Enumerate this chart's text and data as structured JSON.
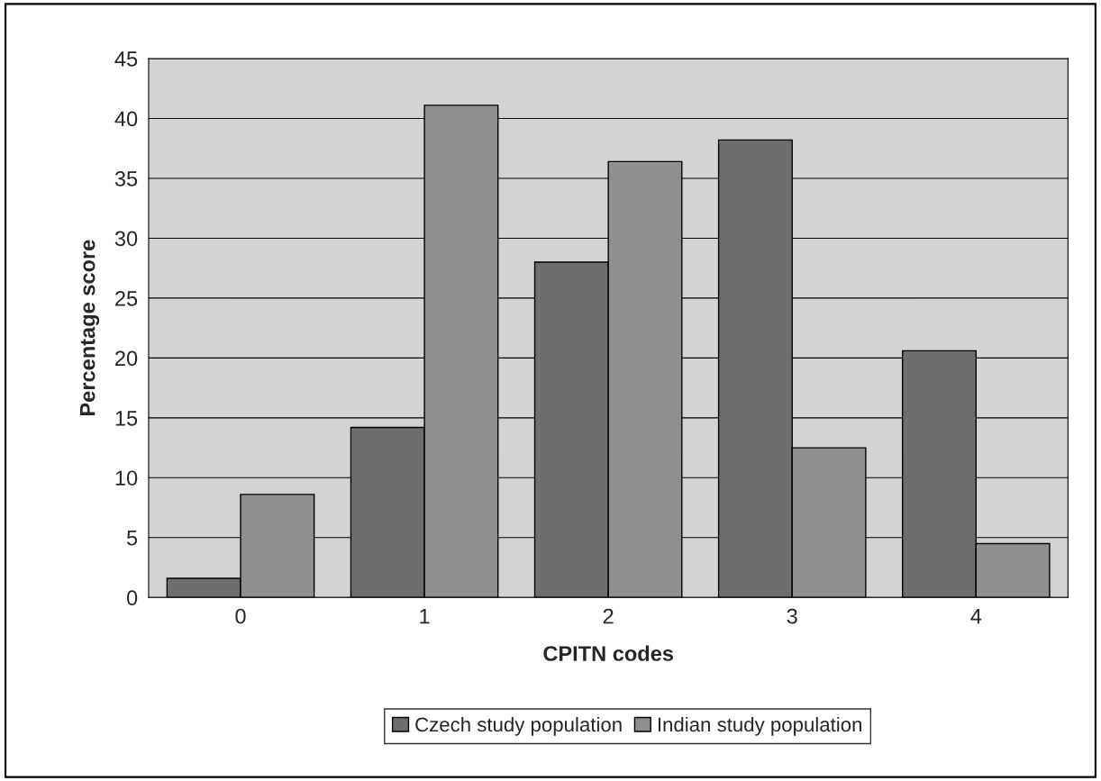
{
  "chart_data": {
    "type": "bar",
    "xlabel": "CPITN codes",
    "ylabel": "Percentage score",
    "categories": [
      "0",
      "1",
      "2",
      "3",
      "4"
    ],
    "series": [
      {
        "name": "Czech study population",
        "color": "#6e6e6e",
        "values": [
          1.6,
          14.2,
          28,
          38.2,
          20.6
        ]
      },
      {
        "name": "Indian study population",
        "color": "#8f8f8f",
        "values": [
          8.6,
          41.1,
          36.4,
          12.5,
          4.5
        ]
      }
    ],
    "ylim": [
      0,
      45
    ],
    "yticks": [
      0,
      5,
      10,
      15,
      20,
      25,
      30,
      35,
      40,
      45
    ],
    "grid": "y",
    "legend": "bottom"
  }
}
